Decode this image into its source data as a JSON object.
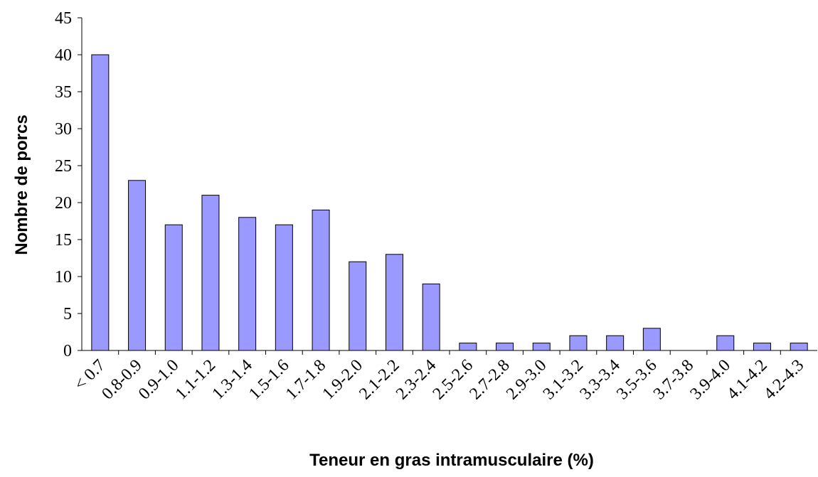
{
  "chart_data": {
    "type": "bar",
    "categories": [
      "< 0.7",
      "0.8-0.9",
      "0.9-1.0",
      "1.1-1.2",
      "1.3-1.4",
      "1.5-1.6",
      "1.7-1.8",
      "1.9-2.0",
      "2.1-2.2",
      "2.3-2.4",
      "2.5-2.6",
      "2.7-2.8",
      "2.9-3.0",
      "3.1-3.2",
      "3.3-3.4",
      "3.5-3.6",
      "3.7-3.8",
      "3.9-4.0",
      "4.1-4.2",
      "4.2-4.3"
    ],
    "values": [
      40,
      23,
      17,
      21,
      18,
      17,
      19,
      12,
      13,
      9,
      1,
      1,
      1,
      2,
      2,
      3,
      0,
      2,
      1,
      1
    ],
    "color": "#9999ff",
    "xlabel": "Teneur en gras intramusculaire (%)",
    "ylabel": "Nombre de porcs",
    "ylim": [
      0,
      45
    ],
    "yticks": [
      0,
      5,
      10,
      15,
      20,
      25,
      30,
      35,
      40,
      45
    ],
    "grid": false
  }
}
